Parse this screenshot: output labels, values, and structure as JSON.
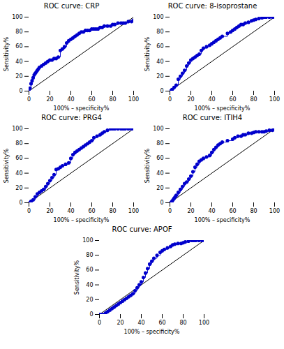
{
  "chart_data": [
    {
      "type": "line",
      "title": "ROC curve: CRP",
      "xlabel": "100% – specificity%",
      "ylabel": "Sensitivity%",
      "xlim": [
        0,
        100
      ],
      "ylim": [
        0,
        100
      ],
      "xticks": [
        0,
        20,
        40,
        60,
        80,
        100
      ],
      "yticks": [
        0,
        20,
        40,
        60,
        80,
        100
      ],
      "grid": false,
      "series": [
        {
          "type": "line",
          "color": "#000000",
          "line_style": "solid",
          "x": [
            0,
            100
          ],
          "values": [
            0,
            100
          ]
        },
        {
          "type": "step",
          "color": "#0000CC",
          "marker": "circle",
          "line_style": "solid",
          "x": [
            0,
            1,
            2,
            3,
            4,
            5,
            6,
            7,
            8,
            9,
            10,
            12,
            14,
            16,
            18,
            20,
            22,
            24,
            26,
            28,
            30,
            32,
            34,
            36,
            38,
            40,
            42,
            44,
            46,
            48,
            50,
            52,
            54,
            56,
            58,
            60,
            62,
            64,
            66,
            68,
            70,
            72,
            75,
            78,
            80,
            82,
            85,
            88,
            90,
            92,
            95,
            98,
            100
          ],
          "values": [
            0,
            4,
            10,
            14,
            18,
            22,
            24,
            26,
            28,
            30,
            32,
            34,
            36,
            38,
            40,
            42,
            42,
            44,
            44,
            46,
            55,
            57,
            60,
            65,
            68,
            70,
            72,
            74,
            76,
            78,
            80,
            80,
            82,
            82,
            82,
            84,
            84,
            84,
            84,
            86,
            86,
            88,
            88,
            88,
            90,
            90,
            92,
            92,
            92,
            92,
            94,
            94,
            96
          ]
        }
      ]
    },
    {
      "type": "line",
      "title": "ROC curve: 8-isoprostane",
      "xlabel": "100% – specificity%",
      "ylabel": "Sensitivity%",
      "xlim": [
        0,
        100
      ],
      "ylim": [
        0,
        100
      ],
      "xticks": [
        0,
        20,
        40,
        60,
        80,
        100
      ],
      "yticks": [
        0,
        20,
        40,
        60,
        80,
        100
      ],
      "grid": false,
      "series": [
        {
          "type": "line",
          "color": "#000000",
          "line_style": "solid",
          "x": [
            0,
            100
          ],
          "values": [
            0,
            100
          ]
        },
        {
          "type": "step",
          "color": "#0000CC",
          "marker": "circle",
          "line_style": "solid",
          "x": [
            0,
            2,
            4,
            6,
            8,
            10,
            12,
            14,
            16,
            18,
            20,
            22,
            24,
            26,
            28,
            30,
            32,
            35,
            38,
            40,
            42,
            44,
            46,
            48,
            50,
            55,
            58,
            60,
            62,
            64,
            66,
            68,
            70,
            72,
            75,
            78,
            80,
            82,
            85,
            88,
            90,
            92,
            95,
            98,
            100
          ],
          "values": [
            0,
            2,
            5,
            8,
            16,
            20,
            24,
            28,
            34,
            38,
            42,
            44,
            46,
            48,
            50,
            55,
            58,
            60,
            62,
            64,
            66,
            68,
            70,
            72,
            74,
            78,
            80,
            82,
            84,
            86,
            88,
            90,
            90,
            92,
            93,
            95,
            96,
            97,
            98,
            99,
            100,
            100,
            100,
            100,
            100
          ]
        }
      ]
    },
    {
      "type": "line",
      "title": "ROC curve: PRG4",
      "xlabel": "100% – specificity%",
      "ylabel": "Sensitivity%",
      "xlim": [
        0,
        100
      ],
      "ylim": [
        0,
        100
      ],
      "xticks": [
        0,
        20,
        40,
        60,
        80,
        100
      ],
      "yticks": [
        0,
        20,
        40,
        60,
        80,
        100
      ],
      "grid": false,
      "series": [
        {
          "type": "line",
          "color": "#000000",
          "line_style": "solid",
          "x": [
            0,
            100
          ],
          "values": [
            0,
            100
          ]
        },
        {
          "type": "step",
          "color": "#0000CC",
          "marker": "circle",
          "line_style": "solid",
          "x": [
            0,
            2,
            4,
            6,
            8,
            10,
            12,
            14,
            16,
            18,
            20,
            22,
            24,
            26,
            28,
            30,
            32,
            35,
            38,
            40,
            42,
            44,
            46,
            48,
            50,
            52,
            54,
            56,
            58,
            60,
            62,
            65,
            68,
            70,
            72,
            75,
            78,
            80,
            82,
            85,
            88,
            90,
            92,
            95,
            98,
            100
          ],
          "values": [
            0,
            2,
            4,
            8,
            12,
            14,
            16,
            18,
            22,
            26,
            30,
            34,
            38,
            45,
            46,
            48,
            50,
            52,
            54,
            60,
            65,
            68,
            70,
            72,
            74,
            76,
            78,
            80,
            82,
            84,
            88,
            90,
            92,
            94,
            96,
            98,
            100,
            100,
            100,
            100,
            100,
            100,
            100,
            100,
            100,
            100
          ]
        }
      ]
    },
    {
      "type": "line",
      "title": "ROC curve: ITIH4",
      "xlabel": "100% – specificity%",
      "ylabel": "Sensitivity%",
      "xlim": [
        0,
        100
      ],
      "ylim": [
        0,
        100
      ],
      "xticks": [
        0,
        20,
        40,
        60,
        80,
        100
      ],
      "yticks": [
        0,
        20,
        40,
        60,
        80,
        100
      ],
      "grid": false,
      "series": [
        {
          "type": "line",
          "color": "#000000",
          "line_style": "solid",
          "x": [
            0,
            100
          ],
          "values": [
            0,
            100
          ]
        },
        {
          "type": "step",
          "color": "#0000CC",
          "marker": "circle",
          "line_style": "solid",
          "x": [
            0,
            2,
            3,
            4,
            5,
            6,
            8,
            10,
            12,
            14,
            16,
            18,
            20,
            22,
            24,
            26,
            28,
            30,
            32,
            35,
            38,
            40,
            42,
            44,
            46,
            48,
            50,
            55,
            60,
            62,
            65,
            68,
            70,
            72,
            75,
            78,
            80,
            82,
            85,
            88,
            90,
            92,
            95,
            98,
            100
          ],
          "values": [
            0,
            2,
            4,
            6,
            8,
            10,
            14,
            18,
            22,
            26,
            28,
            32,
            36,
            42,
            48,
            52,
            56,
            58,
            60,
            62,
            64,
            68,
            72,
            75,
            78,
            80,
            82,
            84,
            86,
            88,
            90,
            90,
            92,
            92,
            94,
            94,
            95,
            96,
            96,
            96,
            96,
            97,
            98,
            98,
            100
          ]
        }
      ]
    },
    {
      "type": "line",
      "title": "ROC curve: APOF",
      "xlabel": "100% – specificity%",
      "ylabel": "Sensitivity%",
      "xlim": [
        0,
        100
      ],
      "ylim": [
        0,
        100
      ],
      "xticks": [
        0,
        20,
        40,
        60,
        80,
        100
      ],
      "yticks": [
        0,
        20,
        40,
        60,
        80,
        100
      ],
      "grid": false,
      "series": [
        {
          "type": "line",
          "color": "#000000",
          "line_style": "solid",
          "x": [
            0,
            100
          ],
          "values": [
            0,
            100
          ]
        },
        {
          "type": "step",
          "color": "#0000CC",
          "marker": "circle",
          "line_style": "solid",
          "x": [
            0,
            2,
            4,
            6,
            8,
            10,
            12,
            14,
            16,
            18,
            20,
            22,
            24,
            26,
            28,
            30,
            32,
            34,
            36,
            38,
            40,
            42,
            44,
            46,
            48,
            50,
            52,
            55,
            58,
            60,
            62,
            65,
            68,
            70,
            72,
            75,
            78,
            80,
            82,
            85,
            88,
            90,
            92,
            95,
            98,
            100
          ],
          "values": [
            0,
            0,
            0,
            2,
            4,
            6,
            8,
            10,
            12,
            14,
            16,
            18,
            20,
            22,
            24,
            26,
            28,
            32,
            36,
            40,
            44,
            50,
            56,
            62,
            68,
            72,
            76,
            80,
            84,
            86,
            88,
            90,
            92,
            94,
            95,
            96,
            96,
            97,
            98,
            99,
            100,
            100,
            100,
            100,
            100,
            100
          ]
        }
      ]
    }
  ]
}
